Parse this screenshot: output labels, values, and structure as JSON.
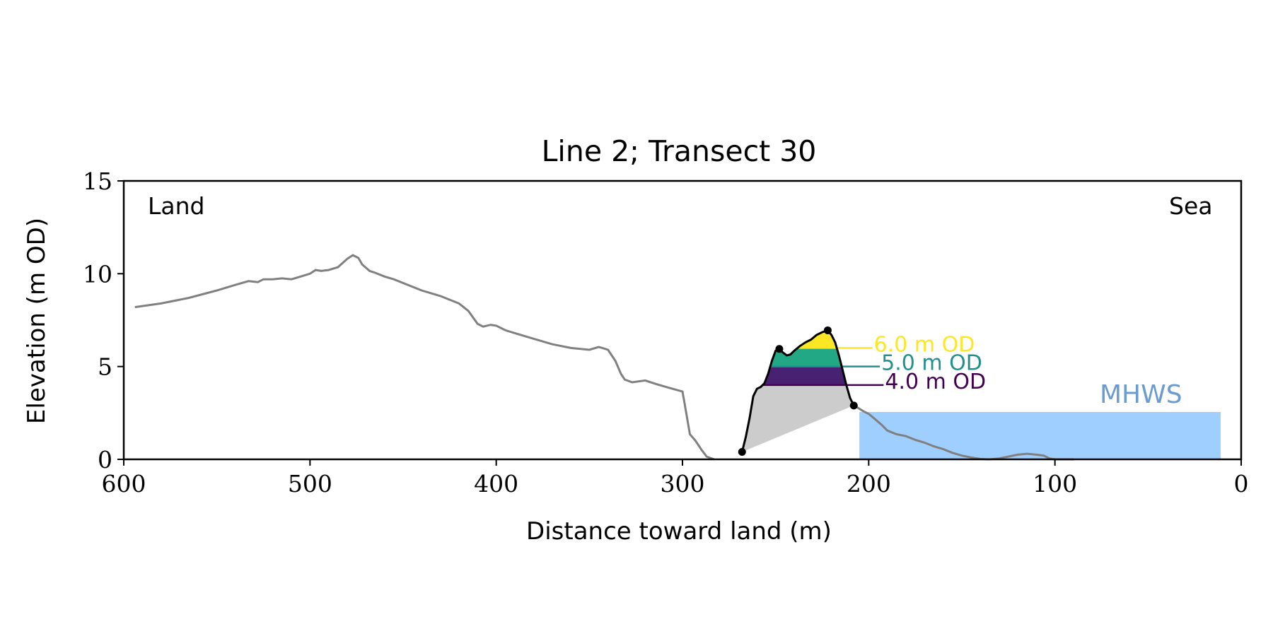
{
  "chart_data": {
    "type": "area",
    "title": "Line 2; Transect 30",
    "xlabel": "Distance toward land (m)",
    "ylabel": "Elevation (m OD)",
    "xlim": [
      600,
      0
    ],
    "ylim": [
      0,
      15
    ],
    "x_ticks": [
      600,
      500,
      400,
      300,
      200,
      100,
      0
    ],
    "y_ticks": [
      0,
      5,
      10,
      15
    ],
    "x_tick_labels": [
      "600",
      "500",
      "400",
      "300",
      "200",
      "100",
      "0"
    ],
    "y_tick_labels": [
      "0",
      "5",
      "10",
      "15"
    ],
    "grid": false,
    "annotations": {
      "land": "Land",
      "sea": "Sea",
      "mhws": "MHWS"
    },
    "mhws": {
      "level": 2.55,
      "x_from": 205,
      "x_to": 11,
      "color": "#9fcfff",
      "label_color": "#6a9cd0"
    },
    "profile": {
      "color": "#808080",
      "x": [
        594,
        580,
        565,
        550,
        540,
        533,
        528,
        525,
        520,
        515,
        510,
        505,
        500,
        497,
        494,
        490,
        485,
        480,
        477,
        474,
        472,
        468,
        465,
        460,
        455,
        450,
        440,
        430,
        420,
        415,
        410,
        407,
        403,
        400,
        395,
        390,
        380,
        370,
        360,
        350,
        345,
        343,
        340,
        336,
        333,
        331,
        327,
        320,
        314,
        307,
        300,
        299,
        296,
        293,
        290,
        287,
        283
      ],
      "y": [
        8.2,
        8.4,
        8.7,
        9.1,
        9.4,
        9.6,
        9.55,
        9.7,
        9.7,
        9.75,
        9.7,
        9.85,
        10.0,
        10.2,
        10.15,
        10.2,
        10.35,
        10.8,
        11.0,
        10.85,
        10.5,
        10.15,
        10.05,
        9.85,
        9.7,
        9.5,
        9.1,
        8.8,
        8.4,
        8.0,
        7.3,
        7.15,
        7.25,
        7.2,
        6.95,
        6.8,
        6.5,
        6.2,
        6.0,
        5.9,
        6.05,
        6.0,
        5.9,
        5.3,
        4.6,
        4.3,
        4.15,
        4.25,
        4.05,
        3.85,
        3.65,
        3.1,
        1.35,
        1.0,
        0.55,
        0.15,
        0.0
      ]
    },
    "profile_seaward": {
      "color": "#808080",
      "x": [
        207,
        203,
        200,
        197,
        193,
        190,
        185,
        180,
        175,
        170,
        165,
        160,
        155,
        150,
        145,
        140,
        135,
        130,
        125,
        120,
        115,
        110,
        106,
        103,
        100,
        95,
        90
      ],
      "y": [
        2.85,
        2.6,
        2.45,
        2.2,
        1.85,
        1.55,
        1.35,
        1.25,
        1.05,
        0.9,
        0.7,
        0.55,
        0.35,
        0.2,
        0.1,
        0.02,
        0.0,
        0.05,
        0.15,
        0.25,
        0.3,
        0.25,
        0.2,
        0.05,
        0.0,
        0.0,
        0.0
      ]
    },
    "dune": {
      "color": "#000000",
      "fill_color": "#cccccc",
      "x": [
        268,
        266,
        264,
        262,
        260,
        258,
        256,
        254,
        252,
        250,
        248,
        246,
        244,
        242,
        240,
        237,
        234,
        231,
        228,
        225,
        222,
        220,
        218,
        216,
        214,
        212,
        210,
        208
      ],
      "y": [
        0.4,
        1.2,
        2.2,
        3.4,
        3.8,
        3.9,
        4.1,
        4.6,
        5.3,
        5.85,
        5.95,
        5.75,
        5.6,
        5.65,
        5.85,
        6.1,
        6.3,
        6.45,
        6.7,
        6.85,
        6.95,
        6.7,
        6.3,
        5.6,
        4.8,
        4.0,
        3.3,
        2.9
      ],
      "toe": [
        268,
        0.4
      ],
      "crest_1": [
        248,
        5.95
      ],
      "crest_2": [
        222,
        6.95
      ],
      "heel": [
        208,
        2.9
      ]
    },
    "contours": [
      {
        "label": "6.0 m OD",
        "level": 6.0,
        "color": "#fde725",
        "band_color": "#fde725",
        "label_x": 198
      },
      {
        "label": "5.0 m OD",
        "level": 5.0,
        "color": "#21918c",
        "band_color": "#22a884",
        "label_x": 194
      },
      {
        "label": "4.0 m OD",
        "level": 4.0,
        "color": "#440154",
        "band_color": "#482173",
        "label_x": 192
      }
    ]
  }
}
